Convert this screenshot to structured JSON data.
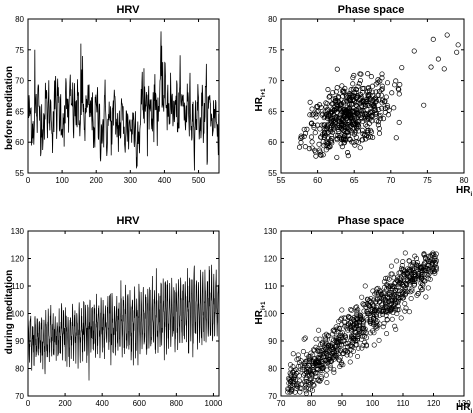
{
  "row_labels": [
    "before meditation",
    "during meditation"
  ],
  "chart_data": [
    {
      "type": "line",
      "title": "HRV",
      "xlim": [
        0,
        560
      ],
      "ylim": [
        55,
        80
      ],
      "xticks": [
        0,
        100,
        200,
        300,
        400,
        500
      ],
      "yticks": [
        55,
        60,
        65,
        70,
        75,
        80
      ],
      "x_count": 560,
      "events": [
        [
          155,
          76
        ],
        [
          160,
          74
        ],
        [
          390,
          78
        ],
        [
          395,
          73
        ],
        [
          340,
          72
        ],
        [
          20,
          75
        ]
      ],
      "series": [
        {
          "baseline": 64,
          "noise": 2.6
        }
      ]
    },
    {
      "type": "scatter",
      "title": "Phase space",
      "xlim": [
        55,
        80
      ],
      "ylim": [
        55,
        80
      ],
      "xticks": [
        55,
        60,
        65,
        70,
        75,
        80
      ],
      "yticks": [
        55,
        60,
        65,
        70,
        75,
        80
      ],
      "xlabel_main": "HR",
      "xlabel_sub": "i",
      "ylabel_main": "HR",
      "ylabel_sub": "i+1",
      "corr": 0.5,
      "series": [
        {
          "mean": 64,
          "sd": 3,
          "n": 550,
          "extra": [
            [
              75.8,
              76.7
            ],
            [
              77.3,
              71.9
            ],
            [
              74.5,
              66
            ],
            [
              73.2,
              74.8
            ],
            [
              76.5,
              73.5
            ],
            [
              79.2,
              75.8
            ],
            [
              79,
              74.6
            ],
            [
              71.5,
              72.1
            ],
            [
              75.5,
              72.2
            ],
            [
              77.7,
              77.4
            ]
          ]
        }
      ]
    },
    {
      "type": "line",
      "title": "HRV",
      "xlim": [
        0,
        1030
      ],
      "ylim": [
        70,
        130
      ],
      "xticks": [
        0,
        200,
        400,
        600,
        800,
        1000
      ],
      "yticks": [
        70,
        80,
        90,
        100,
        110,
        120,
        130
      ],
      "x_count": 1030,
      "series": [
        {
          "trend_start": 90,
          "trend_end": 103,
          "amp_start": 6,
          "amp_end": 11,
          "noise": 5
        }
      ]
    },
    {
      "type": "scatter",
      "title": "Phase space",
      "xlim": [
        70,
        130
      ],
      "ylim": [
        70,
        130
      ],
      "xticks": [
        70,
        80,
        90,
        100,
        110,
        120,
        130
      ],
      "yticks": [
        70,
        80,
        90,
        100,
        110,
        120,
        130
      ],
      "xlabel_main": "HR",
      "xlabel_sub": "i",
      "ylabel_main": "HR",
      "ylabel_sub": "i+1",
      "corr": 0.9,
      "series": [
        {
          "range": [
            72,
            121
          ],
          "spread": 4.5,
          "n": 900
        }
      ]
    }
  ]
}
